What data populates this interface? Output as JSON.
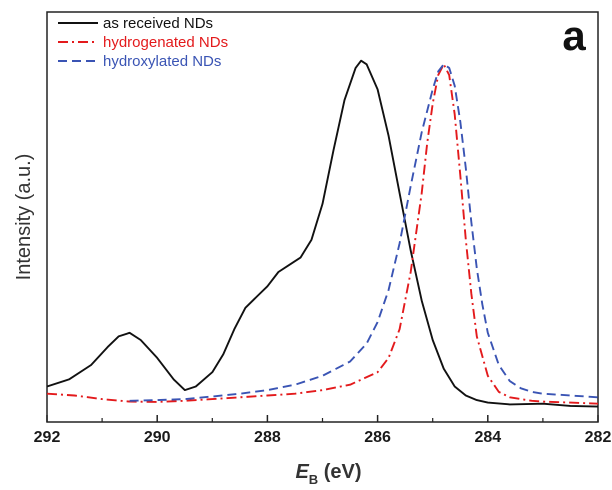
{
  "chart_data": {
    "type": "line",
    "panel_label": "a",
    "xlabel": {
      "symbol": "E",
      "subscript": "B",
      "unit": " (eV)"
    },
    "ylabel": "Intensity (a.u.)",
    "xlim": [
      292,
      282
    ],
    "x_reversed": true,
    "ylim": [
      0,
      1.0
    ],
    "xticks": [
      292,
      290,
      288,
      286,
      284,
      282
    ],
    "xtick_labels": [
      "292",
      "290",
      "288",
      "286",
      "284",
      "282"
    ],
    "grid": false,
    "legend": {
      "position": "top-left"
    },
    "series": [
      {
        "name": "as received NDs",
        "color": "#111111",
        "dash": "solid",
        "x": [
          292.0,
          291.6,
          291.2,
          290.9,
          290.7,
          290.5,
          290.3,
          290.0,
          289.7,
          289.5,
          289.3,
          289.0,
          288.8,
          288.6,
          288.4,
          288.2,
          288.0,
          287.8,
          287.6,
          287.4,
          287.2,
          287.0,
          286.8,
          286.6,
          286.4,
          286.3,
          286.2,
          286.0,
          285.8,
          285.6,
          285.4,
          285.2,
          285.0,
          284.8,
          284.6,
          284.4,
          284.2,
          284.0,
          283.6,
          283.0,
          282.5,
          282.0
        ],
        "y": [
          0.06,
          0.08,
          0.12,
          0.17,
          0.2,
          0.21,
          0.19,
          0.14,
          0.08,
          0.05,
          0.06,
          0.1,
          0.15,
          0.22,
          0.28,
          0.31,
          0.34,
          0.38,
          0.4,
          0.42,
          0.47,
          0.57,
          0.72,
          0.86,
          0.95,
          0.97,
          0.96,
          0.89,
          0.76,
          0.6,
          0.44,
          0.3,
          0.19,
          0.11,
          0.06,
          0.035,
          0.022,
          0.015,
          0.01,
          0.012,
          0.006,
          0.004
        ]
      },
      {
        "name": "hydrogenated NDs",
        "color": "#e31a1c",
        "dash": "dashdot",
        "x": [
          292.0,
          291.5,
          291.0,
          290.5,
          290.0,
          289.5,
          289.0,
          288.5,
          288.0,
          287.5,
          287.0,
          286.5,
          286.0,
          285.8,
          285.6,
          285.4,
          285.2,
          285.1,
          285.0,
          284.9,
          284.8,
          284.7,
          284.6,
          284.5,
          284.4,
          284.3,
          284.2,
          284.0,
          283.8,
          283.6,
          283.4,
          283.2,
          283.0,
          282.5,
          282.0
        ],
        "y": [
          0.04,
          0.035,
          0.025,
          0.018,
          0.017,
          0.02,
          0.025,
          0.03,
          0.035,
          0.04,
          0.05,
          0.065,
          0.1,
          0.14,
          0.22,
          0.38,
          0.6,
          0.74,
          0.85,
          0.93,
          0.96,
          0.93,
          0.82,
          0.65,
          0.47,
          0.32,
          0.2,
          0.09,
          0.045,
          0.03,
          0.025,
          0.02,
          0.018,
          0.015,
          0.012
        ]
      },
      {
        "name": "hydroxylated NDs",
        "color": "#3a54b4",
        "dash": "dashed",
        "x": [
          290.5,
          290.0,
          289.5,
          289.0,
          288.5,
          288.0,
          287.5,
          287.0,
          286.5,
          286.2,
          286.0,
          285.8,
          285.6,
          285.4,
          285.2,
          285.0,
          284.9,
          284.8,
          284.7,
          284.6,
          284.5,
          284.4,
          284.3,
          284.2,
          284.1,
          284.0,
          283.8,
          283.6,
          283.4,
          283.2,
          283.0,
          282.5,
          282.0
        ],
        "y": [
          0.02,
          0.022,
          0.025,
          0.032,
          0.04,
          0.05,
          0.065,
          0.09,
          0.13,
          0.18,
          0.24,
          0.33,
          0.46,
          0.62,
          0.77,
          0.89,
          0.94,
          0.96,
          0.95,
          0.9,
          0.8,
          0.67,
          0.52,
          0.39,
          0.29,
          0.21,
          0.12,
          0.075,
          0.055,
          0.045,
          0.04,
          0.035,
          0.03
        ]
      }
    ]
  }
}
